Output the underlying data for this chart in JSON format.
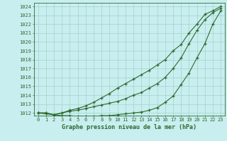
{
  "x": [
    0,
    1,
    2,
    3,
    4,
    5,
    6,
    7,
    8,
    9,
    10,
    11,
    12,
    13,
    14,
    15,
    16,
    17,
    18,
    19,
    20,
    21,
    22,
    23
  ],
  "line1": [
    1012,
    1012,
    1011.8,
    1012,
    1012.3,
    1012.5,
    1012.8,
    1013.2,
    1013.7,
    1014.2,
    1014.8,
    1015.3,
    1015.8,
    1016.3,
    1016.8,
    1017.4,
    1018.0,
    1019.0,
    1019.7,
    1021.0,
    1022.0,
    1023.1,
    1023.5,
    1024.0
  ],
  "line2": [
    1012,
    1012,
    1011.8,
    1012,
    1012.2,
    1012.3,
    1012.5,
    1012.7,
    1012.9,
    1013.1,
    1013.3,
    1013.6,
    1014.0,
    1014.3,
    1014.8,
    1015.3,
    1016.0,
    1017.0,
    1018.2,
    1019.8,
    1021.3,
    1022.5,
    1023.3,
    1023.8
  ],
  "line3": [
    1012,
    1011.9,
    1011.8,
    1011.7,
    1011.7,
    1011.6,
    1011.6,
    1011.6,
    1011.7,
    1011.7,
    1011.8,
    1011.9,
    1012.0,
    1012.1,
    1012.3,
    1012.6,
    1013.2,
    1013.9,
    1015.2,
    1016.5,
    1018.2,
    1019.8,
    1022.0,
    1023.5
  ],
  "bg_color": "#c8eef0",
  "grid_color": "#99ccbb",
  "line_color": "#2d6a2d",
  "marker": "+",
  "markersize": 3.5,
  "markeredgewidth": 0.9,
  "linewidth": 0.8,
  "xlabel": "Graphe pression niveau de la mer (hPa)",
  "xlabel_fontsize": 6.0,
  "ytick_min": 1012,
  "ytick_max": 1024,
  "ytick_step": 1,
  "tick_fontsize": 5.0,
  "axis_color": "#2d6a2d",
  "figwidth": 3.2,
  "figheight": 2.0,
  "dpi": 100
}
